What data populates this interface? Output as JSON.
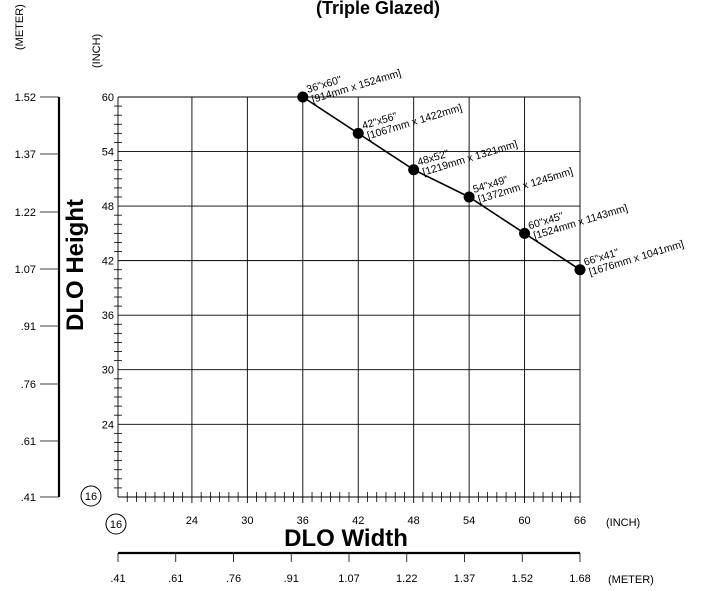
{
  "chart_data": {
    "type": "line",
    "title": "(Triple Glazed)",
    "xlabel": "DLO Width",
    "ylabel": "DLO Height",
    "x_unit_primary": "(INCH)",
    "x_unit_secondary": "(METER)",
    "y_unit_primary": "(INCH)",
    "y_unit_secondary": "(METER)",
    "origin_label": "16",
    "xlim": [
      16,
      66
    ],
    "ylim": [
      16,
      60
    ],
    "x_ticks_inch": [
      "24",
      "30",
      "36",
      "42",
      "48",
      "54",
      "60",
      "66"
    ],
    "x_ticks_meter": [
      ".41",
      ".61",
      ".76",
      ".91",
      "1.07",
      "1.22",
      "1.37",
      "1.52",
      "1.68"
    ],
    "y_ticks_inch": [
      "60",
      "54",
      "48",
      "42",
      "36",
      "30",
      "24"
    ],
    "y_ticks_meter": [
      "1.52",
      "1.37",
      "1.22",
      "1.07",
      ".91",
      ".76",
      ".61",
      ".41"
    ],
    "grid": true,
    "series": [
      {
        "points": [
          {
            "x": 36,
            "y": 60,
            "label1": "36\"x60\"",
            "label2": "[914mm x 1524mm]"
          },
          {
            "x": 42,
            "y": 56,
            "label1": "42\"x56\"",
            "label2": "[1067mm x 1422mm]"
          },
          {
            "x": 48,
            "y": 52,
            "label1": "48x52\"",
            "label2": "[1219mm x 1321mm]"
          },
          {
            "x": 54,
            "y": 49,
            "label1": "54\"x49\"",
            "label2": "[1372mm x 1245mm]"
          },
          {
            "x": 60,
            "y": 45,
            "label1": "60\"x45\"",
            "label2": "[1524mm x 1143mm]"
          },
          {
            "x": 66,
            "y": 41,
            "label1": "66\"x41\"",
            "label2": "[1676mm x 1041mm]"
          }
        ]
      }
    ]
  }
}
